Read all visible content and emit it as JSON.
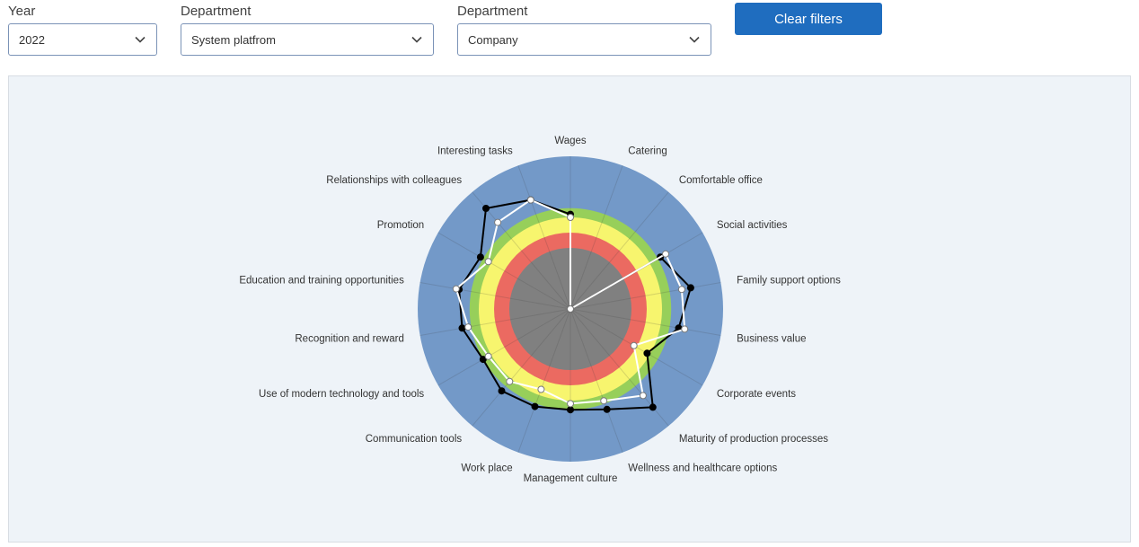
{
  "filters": {
    "year": {
      "label": "Year",
      "value": "2022"
    },
    "department1": {
      "label": "Department",
      "value": "System platfrom"
    },
    "department2": {
      "label": "Department",
      "value": "Company"
    },
    "clear_label": "Clear filters"
  },
  "icons": {
    "dropdown": "chevron-down-icon"
  },
  "colors": {
    "accent": "#1f6dbf",
    "bands": [
      "#808080",
      "#eb6a61",
      "#f7f56e",
      "#97cf5a",
      "#7399c8"
    ],
    "series1": "#000000",
    "series2": "#ffffff",
    "panel": "#eef3f8"
  },
  "chart_data": {
    "type": "radar",
    "scale": [
      0,
      5
    ],
    "bands": [
      2,
      2.5,
      3,
      3.3,
      5
    ],
    "categories": [
      "Wages",
      "Catering",
      "Comfortable office",
      "Social activities",
      "Family support options",
      "Business value",
      "Corporate events",
      "Maturity of production processes",
      "Wellness and healthcare options",
      "Management culture",
      "Work place",
      "Communication tools",
      "Use of modern technology and tools",
      "Recognition and reward",
      "Education and training opportunities",
      "Promotion",
      "Relationships with colleagues",
      "Interesting tasks"
    ],
    "series": [
      {
        "values": [
          3.1,
          0.0,
          0.0,
          3.4,
          4.0,
          3.6,
          2.9,
          4.2,
          3.5,
          3.3,
          3.4,
          3.5,
          3.3,
          3.6,
          3.7,
          3.4,
          4.3,
          3.8
        ]
      },
      {
        "values": [
          3.0,
          0.0,
          0.0,
          3.6,
          3.7,
          3.8,
          2.4,
          3.7,
          3.2,
          3.1,
          2.8,
          3.1,
          3.1,
          3.4,
          3.8,
          3.1,
          3.7,
          3.8
        ]
      }
    ]
  }
}
